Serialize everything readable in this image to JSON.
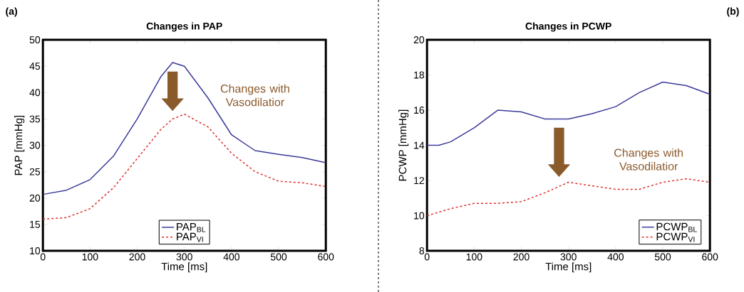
{
  "chart_data": [
    {
      "type": "line",
      "title": "Changes in PAP",
      "xlabel": "Time [ms]",
      "ylabel": "PAP [mmHg]",
      "x": [
        0,
        50,
        100,
        150,
        200,
        250,
        275,
        300,
        350,
        400,
        450,
        500,
        550,
        600
      ],
      "series": [
        {
          "name": "PAP$_{BL}$",
          "color": "#3b3b9a",
          "line_style": "solid",
          "values": [
            20.7,
            21.5,
            23.5,
            28,
            35,
            43,
            45.7,
            45,
            39,
            32,
            29,
            28.3,
            27.7,
            26.7
          ]
        },
        {
          "name": "PAP$_{VI}$",
          "color": "#e03030",
          "line_style": "dashed",
          "values": [
            16,
            16.3,
            18,
            22,
            27.5,
            33,
            35,
            35.9,
            33.5,
            28.5,
            25,
            23.2,
            22.9,
            22.2
          ]
        }
      ],
      "xlim": [
        0,
        600
      ],
      "ylim": [
        10,
        50
      ],
      "xticks": [
        0,
        100,
        200,
        300,
        400,
        500,
        600
      ],
      "yticks": [
        10,
        15,
        20,
        25,
        30,
        35,
        40,
        45,
        50
      ],
      "legend": "bottom",
      "annotations": [
        "(a)",
        "Changes with Vasodilatior"
      ]
    },
    {
      "type": "line",
      "title": "Changes in PCWP",
      "xlabel": "Time [ms]",
      "ylabel": "PCWP [mmHg]",
      "x": [
        0,
        25,
        50,
        100,
        150,
        200,
        250,
        300,
        350,
        400,
        450,
        500,
        550,
        600
      ],
      "series": [
        {
          "name": "PCWP$_{BL}$",
          "color": "#3b3b9a",
          "line_style": "solid",
          "values": [
            14.0,
            14.0,
            14.2,
            15.0,
            16.0,
            15.9,
            15.5,
            15.5,
            15.8,
            16.2,
            17.0,
            17.6,
            17.4,
            16.9
          ]
        },
        {
          "name": "PCWP$_{VI}$",
          "color": "#e03030",
          "line_style": "dashed",
          "values": [
            10.0,
            10.2,
            10.4,
            10.7,
            10.7,
            10.8,
            11.3,
            11.9,
            11.7,
            11.5,
            11.5,
            11.9,
            12.1,
            11.9
          ]
        }
      ],
      "xlim": [
        0,
        600
      ],
      "ylim": [
        8,
        20
      ],
      "xticks": [
        0,
        100,
        200,
        300,
        400,
        500,
        600
      ],
      "yticks": [
        8,
        10,
        12,
        14,
        16,
        18,
        20
      ],
      "legend": "bottom right",
      "annotations": [
        "(b)",
        "Changes with Vasodilatior"
      ]
    }
  ]
}
